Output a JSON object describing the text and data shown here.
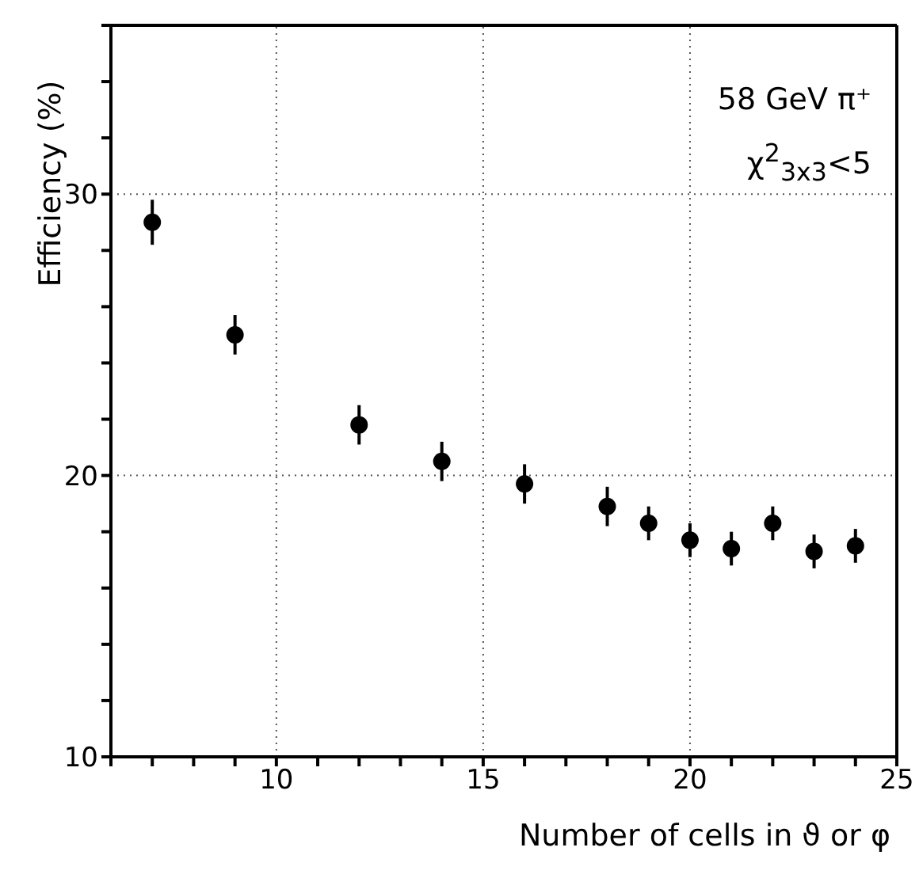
{
  "chart_data": {
    "type": "scatter",
    "xlabel": "Number of cells in ϑ or φ",
    "ylabel": "Efficiency (%)",
    "annotations": [
      "58 GeV π⁺",
      "χ$^{2}$$_{3x3}$<5"
    ],
    "x": [
      7,
      9,
      12,
      14,
      16,
      18,
      19,
      20,
      21,
      22,
      23,
      24
    ],
    "series": [
      {
        "color": "#000000",
        "values": [
          29.0,
          25.0,
          21.8,
          20.5,
          19.7,
          18.9,
          18.3,
          17.7,
          17.4,
          18.3,
          17.3,
          17.5
        ],
        "errors": [
          0.8,
          0.7,
          0.7,
          0.7,
          0.7,
          0.7,
          0.6,
          0.6,
          0.6,
          0.6,
          0.6,
          0.6
        ]
      }
    ],
    "xlim": [
      6,
      25
    ],
    "xticks": [
      {
        "value": 6,
        "label": null
      },
      {
        "value": 7,
        "label": null
      },
      {
        "value": 8,
        "label": null
      },
      {
        "value": 9,
        "label": null
      },
      10,
      {
        "value": 11,
        "label": null
      },
      {
        "value": 12,
        "label": null
      },
      {
        "value": 13,
        "label": null
      },
      {
        "value": 14,
        "label": null
      },
      15,
      {
        "value": 16,
        "label": null
      },
      {
        "value": 17,
        "label": null
      },
      {
        "value": 18,
        "label": null
      },
      {
        "value": 19,
        "label": null
      },
      20,
      {
        "value": 21,
        "label": null
      },
      {
        "value": 22,
        "label": null
      },
      {
        "value": 23,
        "label": null
      },
      {
        "value": 24,
        "label": null
      },
      25
    ],
    "ylim": [
      10,
      36
    ],
    "yticks": [
      10,
      {
        "value": 12,
        "label": null
      },
      {
        "value": 14,
        "label": null
      },
      {
        "value": 16,
        "label": null
      },
      {
        "value": 18,
        "label": null
      },
      20,
      {
        "value": 22,
        "label": null
      },
      {
        "value": 24,
        "label": null
      },
      {
        "value": 26,
        "label": null
      },
      {
        "value": 28,
        "label": null
      },
      30,
      {
        "value": 32,
        "label": null
      },
      {
        "value": 34,
        "label": null
      },
      {
        "value": 36,
        "label": null
      }
    ],
    "grid": true,
    "marker": "circle"
  }
}
